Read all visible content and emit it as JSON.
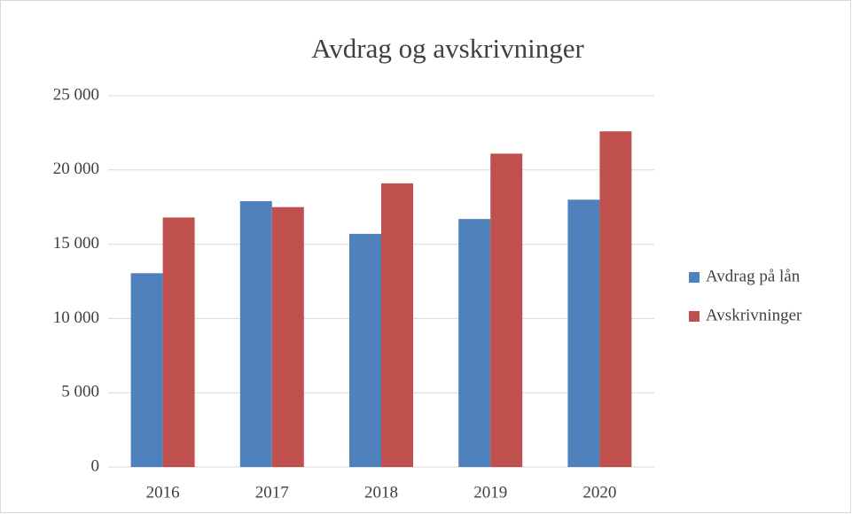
{
  "chart_data": {
    "type": "bar",
    "title": "Avdrag og avskrivninger",
    "categories": [
      "2016",
      "2017",
      "2018",
      "2019",
      "2020"
    ],
    "series": [
      {
        "name": "Avdrag på lån",
        "color": "#4f81bd",
        "values": [
          13050,
          17900,
          15700,
          16700,
          18000
        ]
      },
      {
        "name": "Avskrivninger",
        "color": "#c0504d",
        "values": [
          16800,
          17500,
          19100,
          21100,
          22600
        ]
      }
    ],
    "ylim": [
      0,
      25000
    ],
    "yticks": [
      0,
      {
        "value": 5000,
        "label": "5 000"
      },
      {
        "value": 10000,
        "label": "10 000"
      },
      {
        "value": 15000,
        "label": "15 000"
      },
      {
        "value": 20000,
        "label": "20 000"
      },
      {
        "value": 25000,
        "label": "25 000"
      }
    ],
    "grid": true,
    "legend": "right"
  }
}
